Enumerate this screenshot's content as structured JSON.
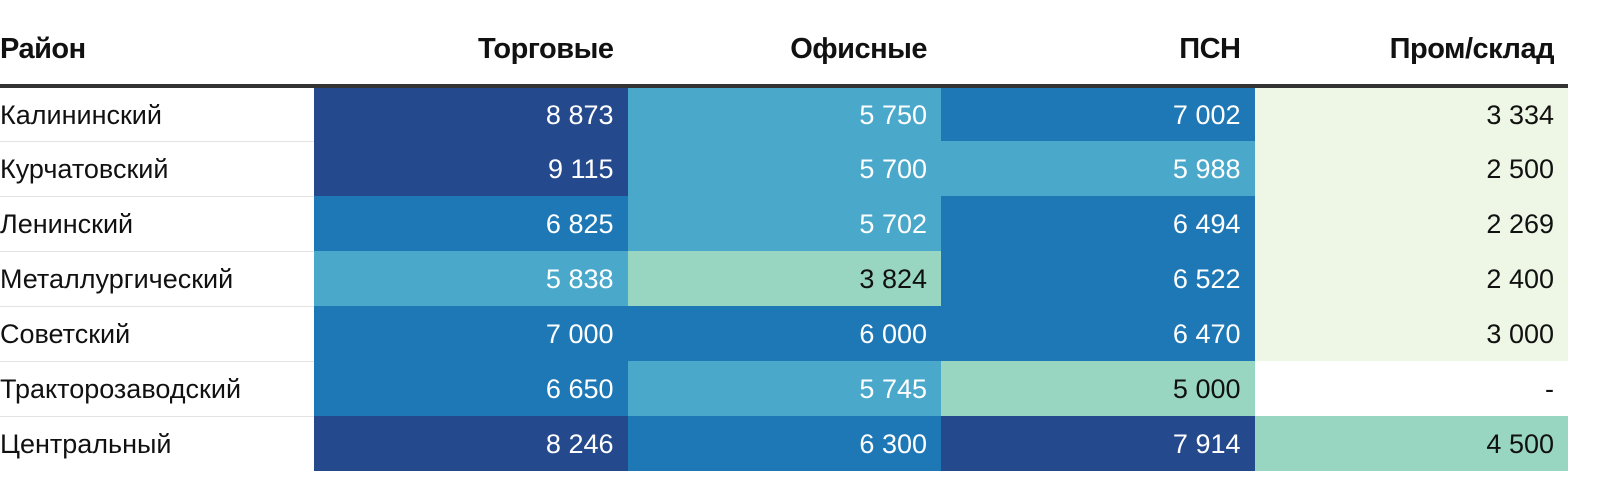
{
  "chart_data": {
    "type": "table",
    "columns": [
      "Район",
      "Торговые",
      "Офисные",
      "ПСН",
      "Пром/склад"
    ],
    "rows": [
      {
        "district": "Калининский",
        "values": [
          "8 873",
          "5 750",
          "7 002",
          "3 334"
        ],
        "numbers": [
          8873,
          5750,
          7002,
          3334
        ]
      },
      {
        "district": "Курчатовский",
        "values": [
          "9 115",
          "5 700",
          "5 988",
          "2 500"
        ],
        "numbers": [
          9115,
          5700,
          5988,
          2500
        ]
      },
      {
        "district": "Ленинский",
        "values": [
          "6 825",
          "5 702",
          "6 494",
          "2 269"
        ],
        "numbers": [
          6825,
          5702,
          6494,
          2269
        ]
      },
      {
        "district": "Металлургический",
        "values": [
          "5 838",
          "3 824",
          "6 522",
          "2 400"
        ],
        "numbers": [
          5838,
          3824,
          6522,
          2400
        ]
      },
      {
        "district": "Советский",
        "values": [
          "7 000",
          "6 000",
          "6 470",
          "3 000"
        ],
        "numbers": [
          7000,
          6000,
          6470,
          3000
        ]
      },
      {
        "district": "Тракторозаводский",
        "values": [
          "6 650",
          "5 745",
          "5 000",
          "-"
        ],
        "numbers": [
          6650,
          5745,
          5000,
          null
        ]
      },
      {
        "district": "Центральный",
        "values": [
          "8 246",
          "6 300",
          "7 914",
          "4 500"
        ],
        "numbers": [
          8246,
          6300,
          7914,
          4500
        ]
      }
    ],
    "color_scale": {
      "very_low": "#eef7e6",
      "low": "#98d6c1",
      "mid": "#4aa8cb",
      "high": "#1e78b6",
      "very_high": "#24498c",
      "empty": "#ffffff"
    }
  }
}
